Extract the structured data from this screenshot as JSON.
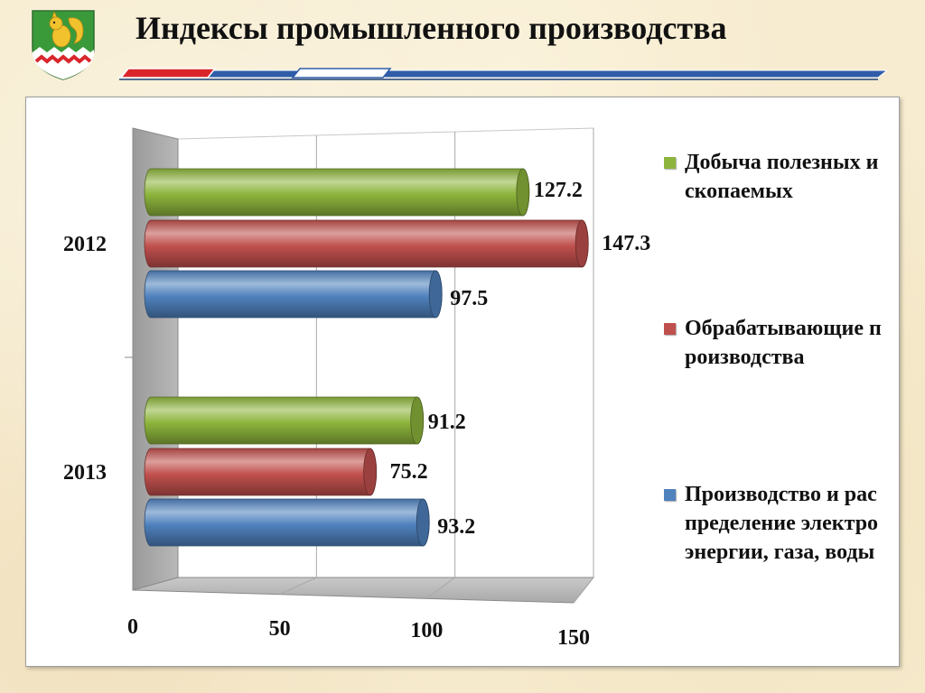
{
  "header": {
    "title": "Индексы промышленного производства"
  },
  "colors": {
    "green": "#8db43c",
    "red": "#c0504d",
    "blue": "#4f81bd",
    "accent_red": "#d9262b",
    "accent_blue": "#2f5da8"
  },
  "chart_data": {
    "type": "bar",
    "orientation": "horizontal",
    "style": "3d-cylinder",
    "categories": [
      "2012",
      "2013"
    ],
    "series": [
      {
        "name": "Добыча полезных ископаемых",
        "color": "#8db43c",
        "values": [
          127.2,
          91.2
        ]
      },
      {
        "name": "Обрабатывающие производства",
        "color": "#c0504d",
        "values": [
          147.3,
          75.2
        ]
      },
      {
        "name": "Производство и распределение электроэнергии, газа, воды",
        "color": "#4f81bd",
        "values": [
          97.5,
          93.2
        ]
      }
    ],
    "data_labels": [
      [
        "127.2",
        "91.2"
      ],
      [
        "147.3",
        "75.2"
      ],
      [
        "97.5",
        "93.2"
      ]
    ],
    "x_ticks": [
      "0",
      "50",
      "100",
      "150"
    ],
    "xlim": [
      0,
      150
    ],
    "grid": true,
    "legend_position": "right"
  }
}
